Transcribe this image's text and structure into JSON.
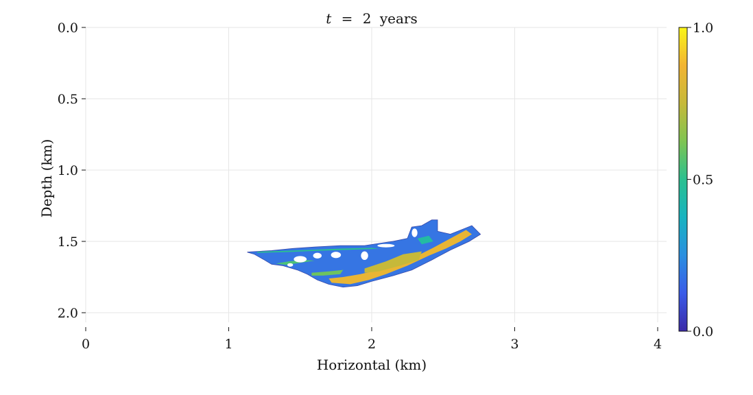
{
  "chart_data": {
    "type": "heatmap",
    "title": {
      "var": "t",
      "eq": "=",
      "value": "2",
      "unit": "years"
    },
    "xlabel": "Horizontal (km)",
    "ylabel": "Depth (km)",
    "xlim": [
      0,
      4.05
    ],
    "ylim": [
      0,
      2.13
    ],
    "y_inverted": true,
    "grid": true,
    "xticks": [
      {
        "value": 0,
        "label": "0"
      },
      {
        "value": 1,
        "label": "1"
      },
      {
        "value": 2,
        "label": "2"
      },
      {
        "value": 3,
        "label": "3"
      },
      {
        "value": 4,
        "label": "4"
      }
    ],
    "yticks": [
      {
        "value": 0.0,
        "label": "0.0"
      },
      {
        "value": 0.5,
        "label": "0.5"
      },
      {
        "value": 1.0,
        "label": "1.0"
      },
      {
        "value": 1.5,
        "label": "1.5"
      },
      {
        "value": 2.0,
        "label": "2.0"
      }
    ],
    "colorbar": {
      "min": 0.0,
      "max": 1.0,
      "ticks": [
        {
          "value": 0.0,
          "label": "0.0"
        },
        {
          "value": 0.5,
          "label": "0.5"
        },
        {
          "value": 1.0,
          "label": "1.0"
        }
      ],
      "colormap": [
        "#3b2aa8",
        "#3a5be8",
        "#2a8fe0",
        "#17b3c0",
        "#2bc08f",
        "#7fc452",
        "#c6b93a",
        "#f2b432",
        "#faf518"
      ]
    },
    "plume": {
      "outline": [
        [
          1.13,
          1.575
        ],
        [
          1.3,
          1.565
        ],
        [
          1.45,
          1.55
        ],
        [
          1.6,
          1.54
        ],
        [
          1.78,
          1.53
        ],
        [
          1.95,
          1.53
        ],
        [
          2.05,
          1.515
        ],
        [
          2.15,
          1.5
        ],
        [
          2.25,
          1.48
        ],
        [
          2.28,
          1.4
        ],
        [
          2.35,
          1.39
        ],
        [
          2.42,
          1.35
        ],
        [
          2.46,
          1.35
        ],
        [
          2.46,
          1.43
        ],
        [
          2.55,
          1.45
        ],
        [
          2.65,
          1.41
        ],
        [
          2.7,
          1.39
        ],
        [
          2.76,
          1.45
        ],
        [
          2.68,
          1.5
        ],
        [
          2.55,
          1.56
        ],
        [
          2.42,
          1.63
        ],
        [
          2.28,
          1.7
        ],
        [
          2.15,
          1.74
        ],
        [
          2.0,
          1.78
        ],
        [
          1.9,
          1.81
        ],
        [
          1.8,
          1.82
        ],
        [
          1.7,
          1.8
        ],
        [
          1.62,
          1.77
        ],
        [
          1.55,
          1.73
        ],
        [
          1.48,
          1.7
        ],
        [
          1.38,
          1.67
        ],
        [
          1.3,
          1.66
        ],
        [
          1.25,
          1.63
        ],
        [
          1.18,
          1.59
        ]
      ],
      "bands": [
        {
          "value": 0.85,
          "path": [
            [
              1.72,
              1.79
            ],
            [
              1.85,
              1.8
            ],
            [
              1.98,
              1.77
            ],
            [
              2.1,
              1.73
            ],
            [
              2.25,
              1.67
            ],
            [
              2.4,
              1.6
            ],
            [
              2.52,
              1.55
            ],
            [
              2.62,
              1.5
            ],
            [
              2.7,
              1.45
            ],
            [
              2.66,
              1.42
            ],
            [
              2.55,
              1.48
            ],
            [
              2.42,
              1.55
            ],
            [
              2.3,
              1.61
            ],
            [
              2.18,
              1.66
            ],
            [
              2.05,
              1.7
            ],
            [
              1.92,
              1.73
            ],
            [
              1.8,
              1.75
            ],
            [
              1.7,
              1.76
            ]
          ]
        },
        {
          "value": 0.75,
          "path": [
            [
              1.95,
              1.69
            ],
            [
              2.1,
              1.64
            ],
            [
              2.22,
              1.59
            ],
            [
              2.35,
              1.57
            ],
            [
              2.33,
              1.63
            ],
            [
              2.2,
              1.67
            ],
            [
              2.05,
              1.71
            ],
            [
              1.95,
              1.72
            ]
          ]
        },
        {
          "value": 0.6,
          "path": [
            [
              1.58,
              1.72
            ],
            [
              1.7,
              1.71
            ],
            [
              1.8,
              1.7
            ],
            [
              1.78,
              1.73
            ],
            [
              1.66,
              1.74
            ],
            [
              1.58,
              1.74
            ]
          ]
        },
        {
          "value": 0.55,
          "path": [
            [
              1.33,
              1.655
            ],
            [
              1.42,
              1.64
            ],
            [
              1.52,
              1.63
            ],
            [
              1.6,
              1.635
            ],
            [
              1.5,
              1.65
            ],
            [
              1.4,
              1.665
            ]
          ]
        },
        {
          "value": 0.45,
          "path": [
            [
              2.32,
              1.48
            ],
            [
              2.4,
              1.46
            ],
            [
              2.43,
              1.5
            ],
            [
              2.35,
              1.52
            ]
          ]
        },
        {
          "value": 0.5,
          "path": [
            [
              1.2,
              1.572
            ],
            [
              1.4,
              1.566
            ],
            [
              1.6,
              1.558
            ],
            [
              1.8,
              1.55
            ],
            [
              2.0,
              1.545
            ],
            [
              2.05,
              1.552
            ],
            [
              1.8,
              1.56
            ],
            [
              1.6,
              1.567
            ],
            [
              1.4,
              1.575
            ],
            [
              1.2,
              1.58
            ]
          ]
        }
      ],
      "holes": [
        {
          "cx": 1.5,
          "cy": 1.625,
          "rx": 0.045,
          "ry": 0.022
        },
        {
          "cx": 1.62,
          "cy": 1.6,
          "rx": 0.03,
          "ry": 0.02
        },
        {
          "cx": 1.75,
          "cy": 1.595,
          "rx": 0.035,
          "ry": 0.022
        },
        {
          "cx": 1.43,
          "cy": 1.665,
          "rx": 0.02,
          "ry": 0.012
        },
        {
          "cx": 1.95,
          "cy": 1.6,
          "rx": 0.025,
          "ry": 0.03
        },
        {
          "cx": 2.1,
          "cy": 1.53,
          "rx": 0.06,
          "ry": 0.012
        },
        {
          "cx": 2.3,
          "cy": 1.44,
          "rx": 0.02,
          "ry": 0.03
        }
      ]
    }
  }
}
